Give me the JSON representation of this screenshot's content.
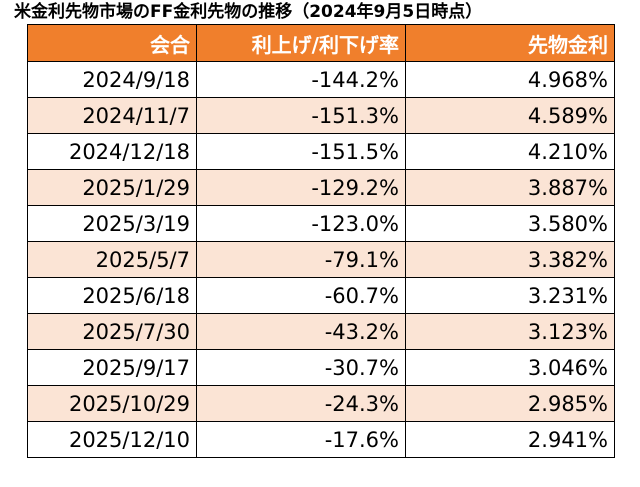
{
  "title": "米金利先物市場のFF金利先物の推移（2024年9月5日時点）",
  "table": {
    "headers": [
      "会合",
      "利上げ/利下げ率",
      "先物金利"
    ],
    "rows": [
      {
        "date": "2024/9/18",
        "change": "-144.2%",
        "rate": "4.968%"
      },
      {
        "date": "2024/11/7",
        "change": "-151.3%",
        "rate": "4.589%"
      },
      {
        "date": "2024/12/18",
        "change": "-151.5%",
        "rate": "4.210%"
      },
      {
        "date": "2025/1/29",
        "change": "-129.2%",
        "rate": "3.887%"
      },
      {
        "date": "2025/3/19",
        "change": "-123.0%",
        "rate": "3.580%"
      },
      {
        "date": "2025/5/7",
        "change": "-79.1%",
        "rate": "3.382%"
      },
      {
        "date": "2025/6/18",
        "change": "-60.7%",
        "rate": "3.231%"
      },
      {
        "date": "2025/7/30",
        "change": "-43.2%",
        "rate": "3.123%"
      },
      {
        "date": "2025/9/17",
        "change": "-30.7%",
        "rate": "3.046%"
      },
      {
        "date": "2025/10/29",
        "change": "-24.3%",
        "rate": "2.985%"
      },
      {
        "date": "2025/12/10",
        "change": "-17.6%",
        "rate": "2.941%"
      }
    ]
  },
  "colors": {
    "header_background": "#f07f2c",
    "header_text": "#ffffff",
    "stripe_background": "#fbe4d5",
    "border": "#000000"
  }
}
